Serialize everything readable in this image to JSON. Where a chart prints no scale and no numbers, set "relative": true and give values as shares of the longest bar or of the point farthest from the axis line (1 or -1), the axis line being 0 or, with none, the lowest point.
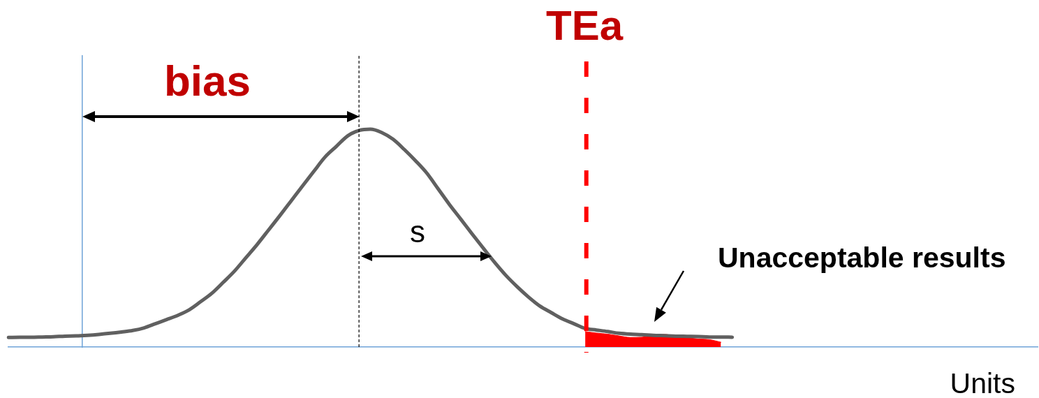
{
  "chart_data": {
    "type": "line",
    "relative": true,
    "marker": "none",
    "xlabel": "Units",
    "categories": [
      null,
      null,
      null,
      null,
      null,
      null,
      null,
      null,
      null,
      null,
      null,
      null,
      null,
      null,
      null,
      null,
      null,
      null,
      null,
      null,
      null,
      null,
      null,
      null,
      null,
      null,
      null,
      null,
      null,
      null,
      null,
      null,
      null,
      null,
      null,
      null,
      null,
      null,
      null,
      null,
      null,
      null,
      null,
      null,
      null,
      null,
      null,
      null,
      null,
      null,
      null,
      null,
      null,
      null,
      null,
      null,
      null,
      null,
      null,
      null,
      null,
      null,
      null,
      null,
      null,
      null,
      null,
      null,
      null,
      null,
      null,
      null,
      null,
      null,
      null,
      null,
      null,
      null,
      null,
      null,
      null,
      null,
      null,
      null,
      null,
      null,
      null,
      null,
      null,
      null,
      null,
      null
    ],
    "series": [
      {
        "color": "#606060",
        "values": [
          0.044,
          0.045,
          0.045,
          0.046,
          0.047,
          0.05,
          0.051,
          0.054,
          0.058,
          0.063,
          0.069,
          0.076,
          0.088,
          0.107,
          0.126,
          0.146,
          0.171,
          0.208,
          0.247,
          0.297,
          0.349,
          0.41,
          0.471,
          0.537,
          0.603,
          0.671,
          0.739,
          0.806,
          0.872,
          0.921,
          0.969,
          0.994,
          1,
          0.985,
          0.954,
          0.907,
          0.855,
          0.798,
          0.726,
          0.654,
          0.587,
          0.519,
          0.453,
          0.388,
          0.328,
          0.276,
          0.229,
          0.188,
          0.158,
          0.129,
          0.107,
          0.085,
          0.078,
          0.071,
          0.063,
          0.059,
          0.057,
          0.054,
          0.052,
          0.05,
          0.049,
          0.048,
          0.046,
          0.046,
          0.045,
          null,
          null,
          null,
          null,
          null,
          null,
          null,
          null,
          null,
          null,
          null,
          null,
          null,
          null,
          null,
          null,
          null,
          null,
          null,
          null,
          null,
          null,
          null,
          null,
          null,
          null,
          null
        ]
      },
      {
        "type": "area",
        "color": "#ff0000",
        "values": [
          null,
          null,
          null,
          null,
          null,
          null,
          null,
          null,
          null,
          null,
          null,
          null,
          null,
          null,
          null,
          null,
          null,
          null,
          null,
          null,
          null,
          null,
          null,
          null,
          null,
          null,
          null,
          null,
          null,
          null,
          null,
          null,
          null,
          null,
          null,
          null,
          null,
          null,
          null,
          null,
          null,
          null,
          null,
          null,
          null,
          null,
          null,
          null,
          null,
          null,
          null,
          0.071,
          0.064,
          0.059,
          0.051,
          0.044,
          0.045,
          0.053,
          0.058,
          0.05,
          0.043,
          0.037,
          0.034,
          0.022,
          null,
          null,
          null,
          null,
          null,
          null,
          null,
          null,
          null,
          null,
          null,
          null,
          null,
          null,
          null,
          null,
          null,
          null,
          null,
          null,
          null,
          null,
          null,
          null,
          null,
          null,
          null,
          null
        ]
      }
    ],
    "annotations": [
      "TEa",
      "bias",
      "s",
      "Unacceptable results"
    ]
  }
}
